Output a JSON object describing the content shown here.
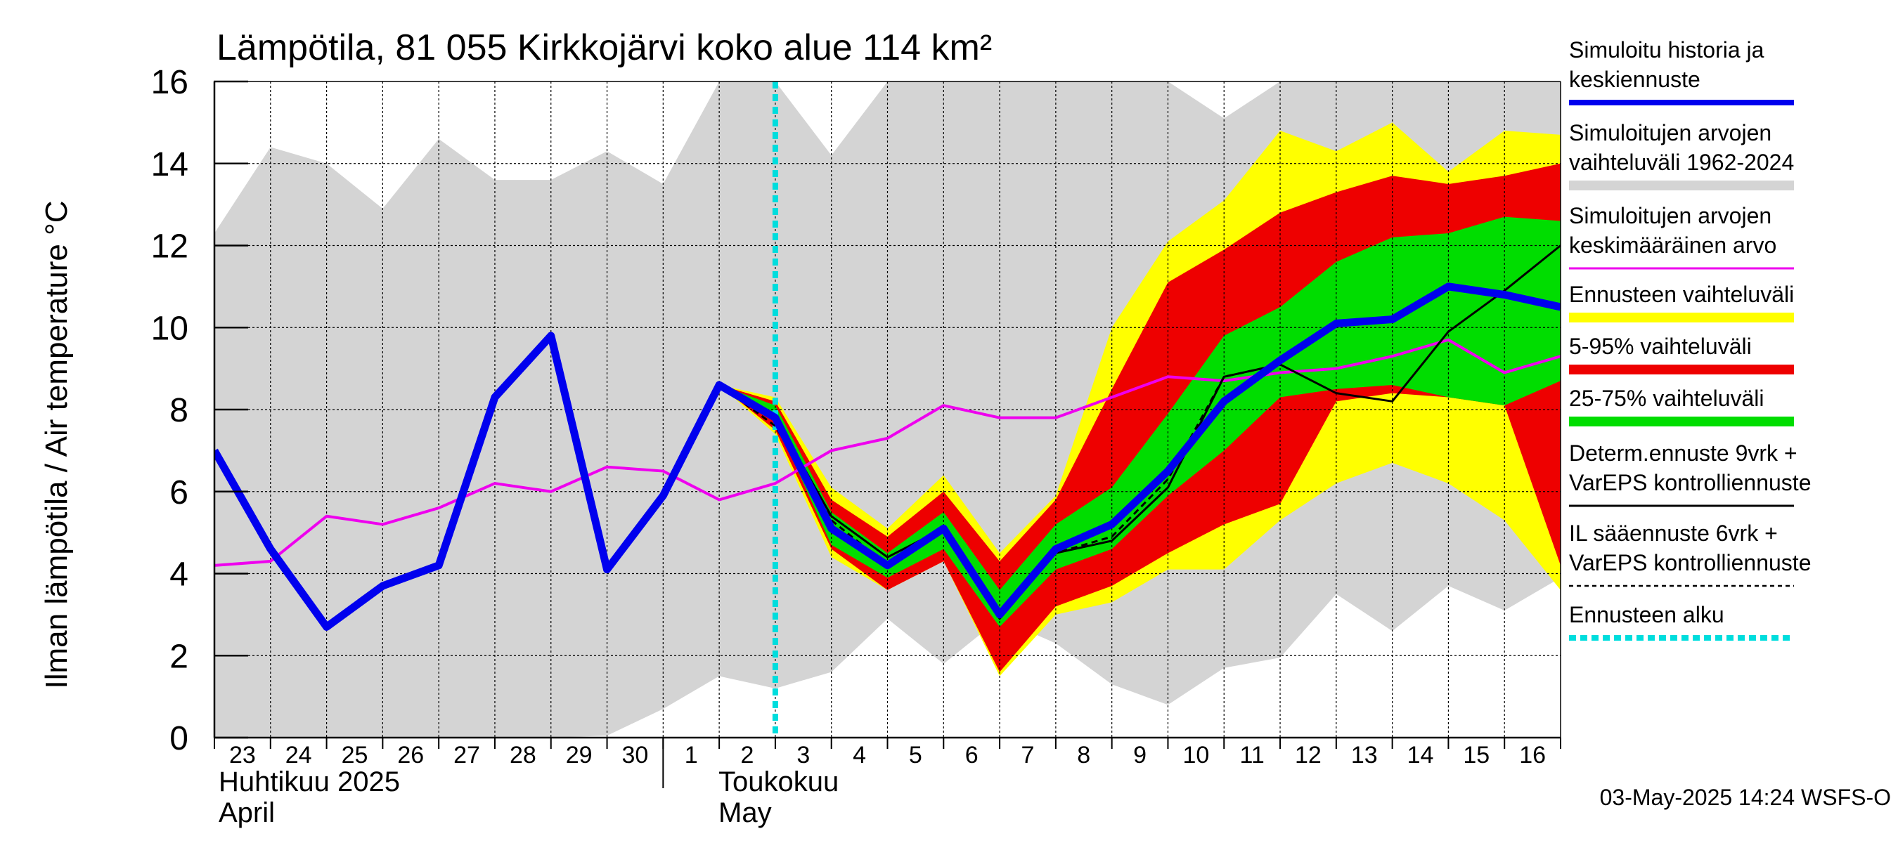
{
  "chart_data": {
    "type": "area",
    "title": "Lämpötila, 81 055 Kirkkojärvi koko alue 114 km²",
    "ylabel": "Ilman lämpötila / Air temperature    °C",
    "ylim": [
      0,
      16
    ],
    "yticks": [
      0,
      2,
      4,
      6,
      8,
      10,
      12,
      14,
      16
    ],
    "xlim": [
      0,
      24
    ],
    "x_tick_labels": [
      "23",
      "24",
      "25",
      "26",
      "27",
      "28",
      "29",
      "30",
      "1",
      "2",
      "3",
      "4",
      "5",
      "6",
      "7",
      "8",
      "9",
      "10",
      "11",
      "12",
      "13",
      "14",
      "15",
      "16"
    ],
    "month_labels": [
      {
        "fi": "Huhtikuu  2025",
        "en": "April"
      },
      {
        "fi": "Toukokuu",
        "en": "May"
      }
    ],
    "forecast_start_x": 10,
    "timestamp": "03-May-2025 14:24 WSFS-O",
    "grid": true,
    "legend_position": "right",
    "legend": [
      {
        "label": "Simuloitu historia ja\nkeskiennuste",
        "color": "#0000ee",
        "style": "line"
      },
      {
        "label": "Simuloitujen arvojen\nvaihteluväli 1962-2024",
        "color": "#d4d4d4",
        "style": "band"
      },
      {
        "label": "Simuloitujen arvojen\nkeskimääräinen arvo",
        "color": "#ee00ee",
        "style": "line"
      },
      {
        "label": "Ennusteen vaihteluväli",
        "color": "#ffff00",
        "style": "band"
      },
      {
        "label": "5-95% vaihteluväli",
        "color": "#ee0000",
        "style": "band"
      },
      {
        "label": "25-75% vaihteluväli",
        "color": "#00dd00",
        "style": "band"
      },
      {
        "label": "Determ.ennuste 9vrk +\nVarEPS kontrolliennuste",
        "color": "#000000",
        "style": "line"
      },
      {
        "label": "IL sääennuste 6vrk  +\n  VarEPS kontrolliennuste",
        "color": "#000000",
        "style": "dashed"
      },
      {
        "label": "Ennusteen alku",
        "color": "#00dddd",
        "style": "dotted"
      }
    ],
    "series": [
      {
        "key": "hist_range",
        "x": [
          0,
          1,
          2,
          3,
          4,
          5,
          6,
          7,
          8,
          9,
          10,
          11,
          12,
          13,
          14,
          15,
          16,
          17,
          18,
          19,
          20,
          21,
          22,
          23,
          24
        ],
        "low": [
          0,
          0,
          0,
          0,
          0,
          0,
          0,
          0.05,
          0.7,
          1.5,
          1.2,
          1.6,
          2.9,
          1.8,
          2.9,
          2.3,
          1.3,
          0.8,
          1.7,
          1.95,
          3.5,
          2.6,
          3.7,
          3.1,
          3.9
        ],
        "high": [
          12.3,
          14.4,
          14.0,
          12.9,
          14.6,
          13.6,
          13.6,
          14.3,
          13.5,
          16,
          16,
          14.2,
          16,
          16,
          16,
          16,
          16,
          16,
          15.1,
          16,
          16,
          16,
          16,
          16,
          16
        ]
      },
      {
        "key": "forecast_range",
        "x": [
          9,
          10,
          11,
          12,
          13,
          14,
          15,
          16,
          17,
          18,
          19,
          20,
          21,
          22,
          23,
          24
        ],
        "low": [
          8.6,
          7.4,
          4.4,
          3.6,
          4.3,
          1.5,
          3.0,
          3.3,
          4.1,
          4.1,
          5.3,
          6.2,
          6.7,
          6.2,
          5.3,
          3.6
        ],
        "high": [
          8.6,
          8.3,
          6.1,
          5.1,
          6.4,
          4.5,
          5.9,
          10.0,
          12.1,
          13.1,
          14.8,
          14.3,
          15.0,
          13.8,
          14.8,
          14.7
        ]
      },
      {
        "key": "p5_95",
        "x": [
          9,
          10,
          11,
          12,
          13,
          14,
          15,
          16,
          17,
          18,
          19,
          20,
          21,
          22,
          23,
          24
        ],
        "low": [
          8.6,
          7.5,
          4.6,
          3.6,
          4.3,
          1.6,
          3.2,
          3.7,
          4.5,
          5.2,
          5.7,
          8.2,
          8.4,
          8.3,
          8.1,
          4.2
        ],
        "high": [
          8.6,
          8.2,
          5.8,
          4.9,
          6.0,
          4.3,
          5.8,
          8.5,
          11.1,
          11.9,
          12.8,
          13.3,
          13.7,
          13.5,
          13.7,
          14.0
        ]
      },
      {
        "key": "p25_75",
        "x": [
          9,
          10,
          11,
          12,
          13,
          14,
          15,
          16,
          17,
          18,
          19,
          20,
          21,
          22,
          23,
          24
        ],
        "low": [
          8.6,
          7.7,
          4.7,
          3.9,
          4.6,
          2.7,
          4.1,
          4.6,
          5.9,
          7.0,
          8.3,
          8.5,
          8.6,
          8.3,
          8.1,
          8.7
        ],
        "high": [
          8.6,
          8.1,
          5.5,
          4.5,
          5.5,
          3.6,
          5.2,
          6.1,
          7.9,
          9.8,
          10.5,
          11.6,
          12.2,
          12.3,
          12.7,
          12.6
        ]
      },
      {
        "key": "climate_mean",
        "color": "#ee00ee",
        "x": [
          0,
          1,
          2,
          3,
          4,
          5,
          6,
          7,
          8,
          9,
          10,
          11,
          12,
          13,
          14,
          15,
          16,
          17,
          18,
          19,
          20,
          21,
          22,
          23,
          24
        ],
        "y": [
          4.2,
          4.3,
          5.4,
          5.2,
          5.6,
          6.2,
          6.0,
          6.6,
          6.5,
          5.8,
          6.2,
          7.0,
          7.3,
          8.1,
          7.8,
          7.8,
          8.3,
          8.8,
          8.7,
          8.9,
          9.0,
          9.3,
          9.7,
          8.9,
          9.3
        ]
      },
      {
        "key": "determ",
        "color": "#000000",
        "x": [
          9,
          10,
          11,
          12,
          13,
          14,
          15,
          16,
          17,
          18,
          19,
          20,
          21,
          22,
          23,
          24
        ],
        "y": [
          8.6,
          7.8,
          5.4,
          4.4,
          5.1,
          3.0,
          4.5,
          4.8,
          6.1,
          8.8,
          9.1,
          8.4,
          8.2,
          9.9,
          10.9,
          12.0
        ]
      },
      {
        "key": "il_forecast",
        "color": "#000000",
        "x": [
          9,
          10,
          11,
          12,
          13,
          14,
          15,
          16,
          17,
          18,
          19
        ],
        "y": [
          8.6,
          7.6,
          5.3,
          4.2,
          5.1,
          2.9,
          4.5,
          4.9,
          6.3,
          8.8,
          9.1
        ]
      },
      {
        "key": "simulated",
        "color": "#0000ee",
        "x": [
          0,
          1,
          2,
          3,
          4,
          5,
          6,
          7,
          8,
          9,
          10,
          11,
          12,
          13,
          14,
          15,
          16,
          17,
          18,
          19,
          20,
          21,
          22,
          23,
          24
        ],
        "y": [
          7.0,
          4.6,
          2.7,
          3.7,
          4.2,
          8.3,
          9.8,
          4.1,
          5.9,
          8.6,
          7.8,
          5.1,
          4.2,
          5.1,
          3.0,
          4.6,
          5.2,
          6.5,
          8.2,
          9.2,
          10.1,
          10.2,
          11.0,
          10.8,
          10.5
        ]
      }
    ]
  }
}
